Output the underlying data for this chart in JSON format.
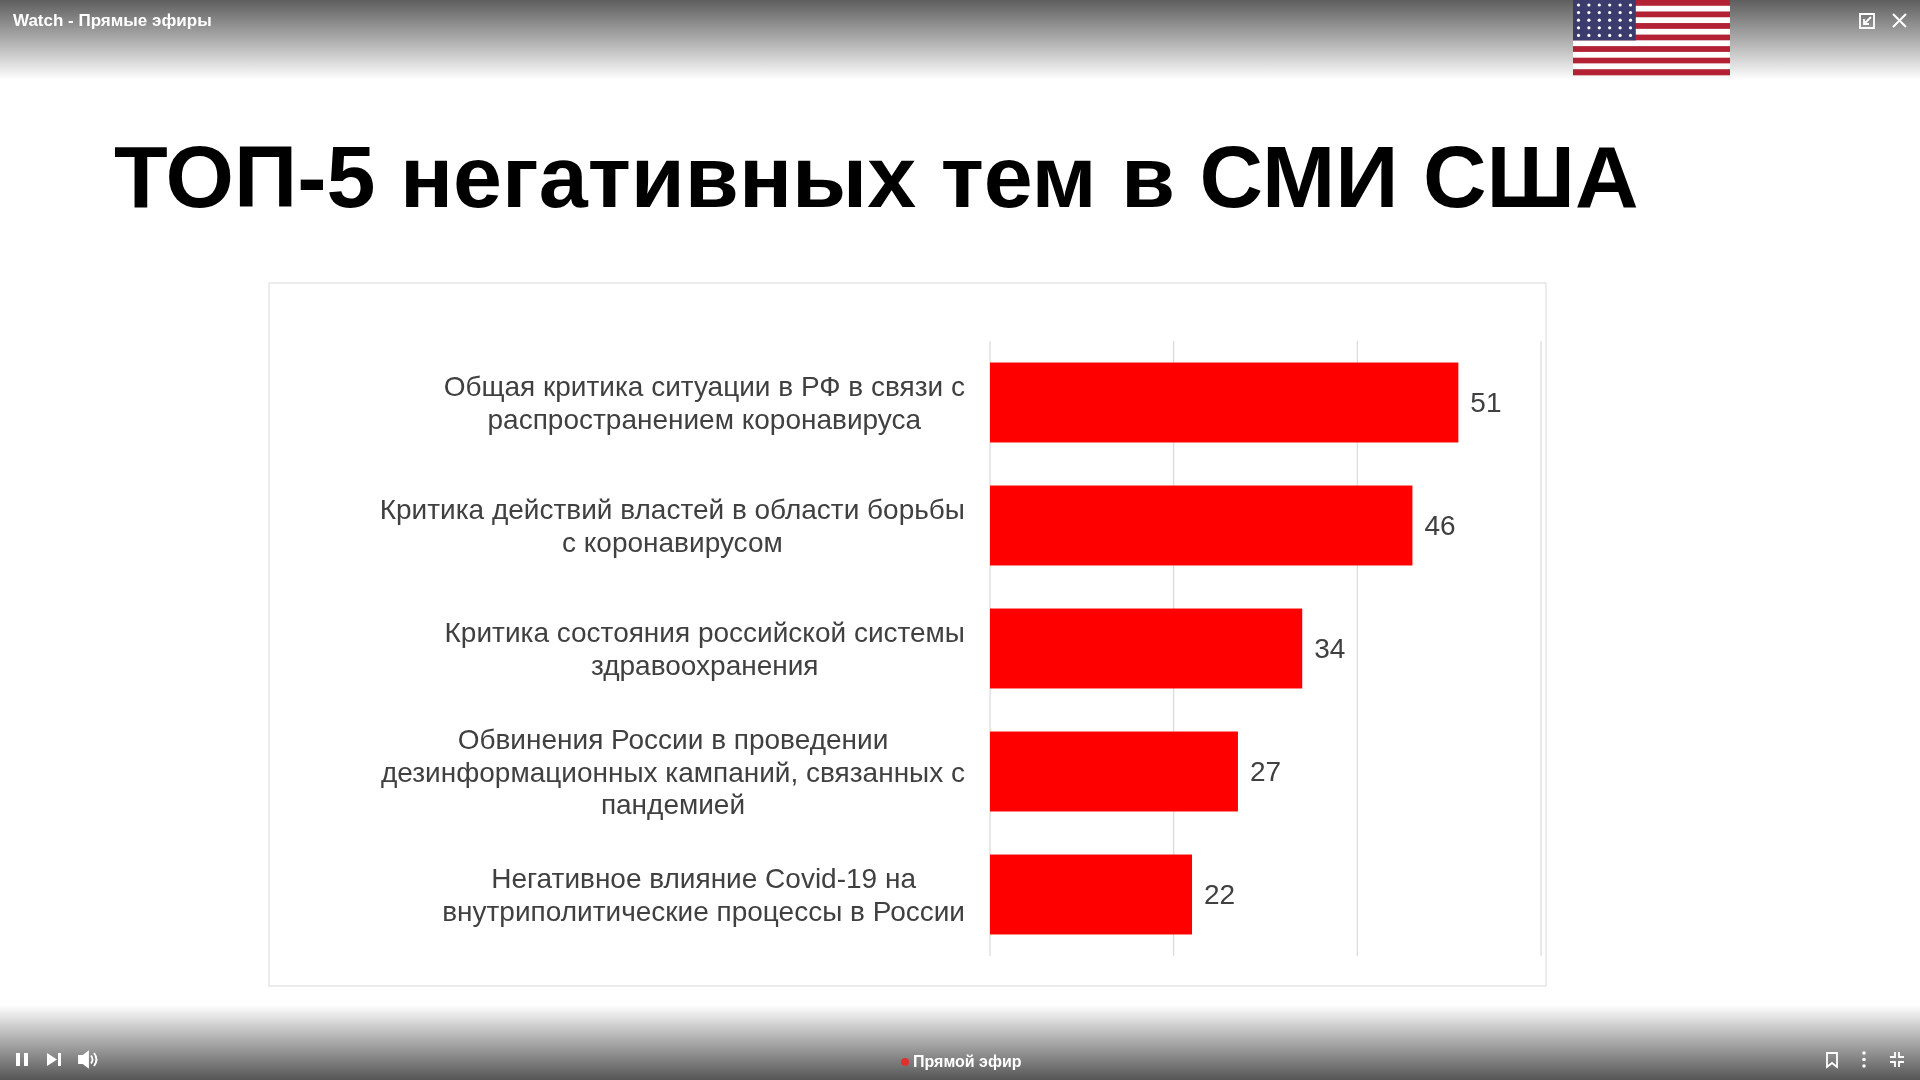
{
  "chart_data": {
    "type": "bar",
    "orientation": "horizontal",
    "title": "ТОП-5 негативных тем в СМИ США",
    "categories": [
      "Общая критика ситуации в РФ в связи с распространением коронавируса",
      "Критика действий властей в области борьбы с коронавирусом",
      "Критика состояния российской системы здравоохранения",
      "Обвинения России в проведении дезинформационных кампаний, связанных с пандемией",
      "Негативное влияние Covid-19 на внутриполитические процессы в России"
    ],
    "values": [
      51,
      46,
      34,
      27,
      22
    ],
    "color": "#ff0000",
    "xlim": [
      0,
      60
    ],
    "xticks": [
      {
        "value": 0,
        "label": null
      },
      {
        "value": 20,
        "label": null
      },
      {
        "value": 40,
        "label": null
      },
      {
        "value": 60,
        "label": null
      }
    ],
    "grid": "x",
    "tick_labels": "y",
    "data_labels": true,
    "annotations": [
      "Watch - Прямые эфиры",
      "Прямой эфир"
    ]
  }
}
